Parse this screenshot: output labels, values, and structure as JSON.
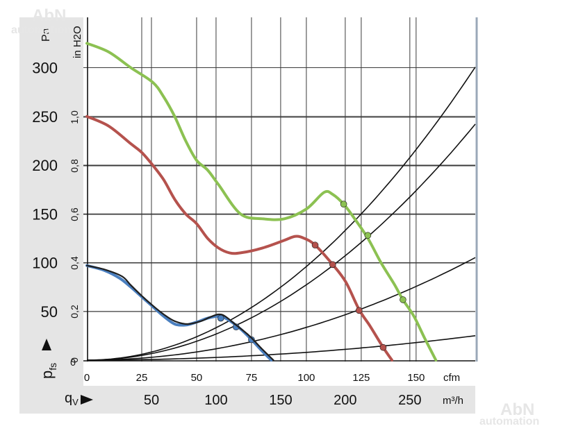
{
  "watermark": {
    "top": "AbN",
    "bottom": "automation"
  },
  "chart_data": {
    "type": "line",
    "title": "",
    "pressure_axis": {
      "unit_pa": "Pa",
      "ticks_pa": [
        0,
        50,
        100,
        150,
        200,
        250,
        300
      ],
      "ylim_pa": [
        0,
        340
      ],
      "unit_inh2o": "in H2O",
      "ticks_inh2o": [
        "0",
        "0,2",
        "0,4",
        "0,6",
        "0,8",
        "1,0"
      ],
      "ticks_inh2o_values": [
        0,
        0.2,
        0.4,
        0.6,
        0.8,
        1.0
      ],
      "symbol_main": "p",
      "symbol_sub": "fs"
    },
    "flow_axis": {
      "unit_cfm": "cfm",
      "ticks_cfm": [
        0,
        25,
        50,
        75,
        100,
        125,
        150
      ],
      "xlim_cfm": [
        0,
        177
      ],
      "unit_m3h": "m³/h",
      "ticks_m3h": [
        50,
        100,
        150,
        200,
        250
      ],
      "symbol_main": "q",
      "symbol_sub": "V"
    },
    "grid": true,
    "series": [
      {
        "color": "#8cc152",
        "points": [
          [
            0,
            325
          ],
          [
            10,
            316
          ],
          [
            20,
            300
          ],
          [
            30,
            285
          ],
          [
            35,
            270
          ],
          [
            40,
            250
          ],
          [
            45,
            225
          ],
          [
            50,
            205
          ],
          [
            55,
            195
          ],
          [
            60,
            180
          ],
          [
            70,
            150
          ],
          [
            80,
            145
          ],
          [
            90,
            145
          ],
          [
            100,
            155
          ],
          [
            108,
            172
          ],
          [
            112,
            170
          ],
          [
            117,
            160
          ],
          [
            122,
            145
          ],
          [
            128,
            125
          ],
          [
            134,
            100
          ],
          [
            140,
            78
          ],
          [
            144,
            62
          ],
          [
            149,
            45
          ],
          [
            154,
            22
          ],
          [
            159,
            0
          ]
        ],
        "markers": [
          [
            117,
            160
          ],
          [
            128,
            128
          ],
          [
            144,
            62
          ]
        ]
      },
      {
        "color": "#b5524d",
        "points": [
          [
            0,
            250
          ],
          [
            10,
            240
          ],
          [
            20,
            222
          ],
          [
            25,
            213
          ],
          [
            30,
            200
          ],
          [
            35,
            185
          ],
          [
            40,
            165
          ],
          [
            45,
            150
          ],
          [
            50,
            140
          ],
          [
            55,
            125
          ],
          [
            60,
            115
          ],
          [
            65,
            110
          ],
          [
            70,
            110
          ],
          [
            80,
            115
          ],
          [
            90,
            123
          ],
          [
            95,
            127
          ],
          [
            99,
            125
          ],
          [
            104,
            118
          ],
          [
            112,
            98
          ],
          [
            118,
            80
          ],
          [
            124,
            52
          ],
          [
            129,
            35
          ],
          [
            135,
            13
          ],
          [
            139,
            0
          ]
        ],
        "markers": [
          [
            104,
            118
          ],
          [
            112,
            98
          ],
          [
            124,
            51
          ],
          [
            135,
            13
          ]
        ]
      },
      {
        "color": "#4a7fbf",
        "points": [
          [
            0,
            97
          ],
          [
            8,
            92
          ],
          [
            15,
            84
          ],
          [
            20,
            75
          ],
          [
            25,
            65
          ],
          [
            30,
            55
          ],
          [
            35,
            45
          ],
          [
            40,
            37
          ],
          [
            45,
            36
          ],
          [
            50,
            39
          ],
          [
            55,
            43
          ],
          [
            60,
            45
          ],
          [
            64,
            42
          ],
          [
            70,
            32
          ],
          [
            75,
            21
          ],
          [
            80,
            9
          ],
          [
            84,
            0
          ]
        ],
        "markers": [
          [
            61,
            43
          ],
          [
            68,
            34
          ],
          [
            75,
            21
          ]
        ]
      },
      {
        "color": "#1f1f1f",
        "points": [
          [
            0,
            97
          ],
          [
            8,
            93
          ],
          [
            16,
            86
          ],
          [
            20,
            77
          ],
          [
            25,
            66
          ],
          [
            30,
            56
          ],
          [
            35,
            47
          ],
          [
            40,
            40
          ],
          [
            46,
            37
          ],
          [
            52,
            40
          ],
          [
            56,
            44
          ],
          [
            60,
            47
          ],
          [
            63,
            45
          ],
          [
            68,
            36
          ],
          [
            74,
            25
          ],
          [
            80,
            11
          ],
          [
            85,
            0
          ]
        ],
        "markers": []
      }
    ],
    "system_curves": [
      {
        "k": 0.0096
      },
      {
        "k": 0.00773
      },
      {
        "k": 0.00336
      },
      {
        "k": 0.0008
      }
    ]
  }
}
